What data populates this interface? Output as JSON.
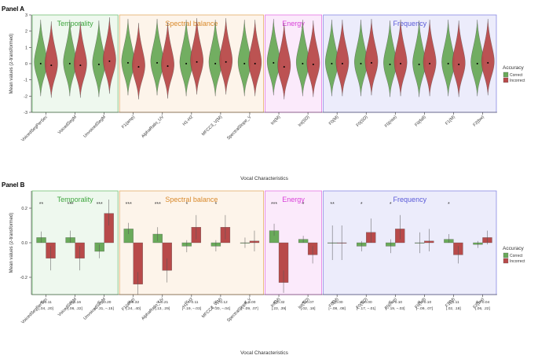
{
  "colors": {
    "correct": "#6aaa5a",
    "incorrect": "#b84a4a",
    "temporality": "#3fa63f",
    "spectral": "#d9892a",
    "energy": "#d83fd8",
    "frequency": "#5a5ad8"
  },
  "chart_data": [
    {
      "panel": "Panel A",
      "type": "violin",
      "ylabel": "Mean values (z-transformed)",
      "xlabel": "Vocal Characteristics",
      "ylim": [
        -3,
        3
      ],
      "yticks": [
        "3",
        "2",
        "1",
        "0",
        "-1",
        "-2",
        "-3"
      ],
      "legend": {
        "title": "Accuracy",
        "entries": [
          "Correct",
          "Incorrect"
        ],
        "placement": "right"
      },
      "groups": [
        {
          "name": "Temporality",
          "vars": [
            "VoicedSegPerSec",
            "VoicedSegM",
            "UnvoicedSegM"
          ]
        },
        {
          "name": "Spectral balance",
          "vars": [
            "F1(amp)",
            "AlphaRatio_UV",
            "H1-H2",
            "MFCC3_V(M)",
            "SpectralSlope_V"
          ]
        },
        {
          "name": "Energy",
          "vars": [
            "Int(M)",
            "Int(SD)"
          ]
        },
        {
          "name": "Frequency",
          "vars": [
            "F0(M)",
            "F0(SD)",
            "F0(rise)",
            "F0(fall)",
            "F1(M)",
            "F2(bw)"
          ]
        }
      ],
      "series": [
        {
          "name": "Correct",
          "means": [
            0.0,
            0.0,
            -0.05,
            0.05,
            0.05,
            0.0,
            0.0,
            0.0,
            0.05,
            0.0,
            0.0,
            0.0,
            -0.05,
            -0.05,
            0.0,
            0.0
          ]
        },
        {
          "name": "Incorrect",
          "means": [
            -0.1,
            -0.1,
            0.15,
            -0.2,
            -0.15,
            0.1,
            0.1,
            0.0,
            -0.2,
            -0.05,
            0.0,
            0.05,
            0.0,
            0.0,
            -0.05,
            0.05
          ]
        }
      ]
    },
    {
      "panel": "Panel B",
      "type": "bar",
      "ylabel": "Mean values (z-transformed)",
      "xlabel": "Vocal Characteristics",
      "ylim": [
        -0.3,
        0.3
      ],
      "yticks": [
        "0.2",
        "0.0",
        "-0.2"
      ],
      "legend": {
        "title": "Accuracy",
        "entries": [
          "Correct",
          "Incorrect"
        ],
        "placement": "right"
      },
      "groups": [
        {
          "name": "Temporality",
          "vars": [
            "VoicedSegPerSec",
            "VoicedSegM",
            "UnvoicedSegM"
          ]
        },
        {
          "name": "Spectral balance",
          "vars": [
            "F1(amp)",
            "AlphaRatio_UV",
            "H1-H2",
            "MFCC3_V(M)",
            "SpectralSlope_V"
          ]
        },
        {
          "name": "Energy",
          "vars": [
            "Int(M)",
            "Int(SD)"
          ]
        },
        {
          "name": "Frequency",
          "vars": [
            "F0(M)",
            "F0(SD)",
            "F0(rise)",
            "F0(fall)",
            "F1(M)",
            "F2(bw)"
          ]
        }
      ],
      "significance": [
        "**",
        "***",
        "***",
        "***",
        "***",
        "*",
        "*",
        "",
        "***",
        "*",
        "**",
        "*",
        "*",
        "",
        "*",
        ""
      ],
      "series": [
        {
          "name": "Correct",
          "values": [
            0.03,
            0.03,
            -0.05,
            0.08,
            0.05,
            -0.02,
            -0.02,
            0.0,
            0.07,
            0.02,
            0.0,
            -0.02,
            -0.02,
            0.0,
            0.02,
            -0.01
          ],
          "ci": [
            [
              0.0,
              0.065
            ],
            [
              0.0,
              0.07
            ],
            [
              -0.09,
              -0.01
            ],
            [
              0.05,
              0.115
            ],
            [
              0.01,
              0.09
            ],
            [
              -0.055,
              0.015
            ],
            [
              -0.05,
              0.015
            ],
            [
              -0.03,
              0.03
            ],
            [
              0.04,
              0.11
            ],
            [
              0.0,
              0.04
            ],
            [
              -0.1,
              0.1
            ],
            [
              -0.05,
              0.01
            ],
            [
              -0.06,
              0.02
            ],
            [
              -0.06,
              0.06
            ],
            [
              0.0,
              0.05
            ],
            [
              -0.03,
              0.01
            ]
          ]
        },
        {
          "name": "Incorrect",
          "values": [
            -0.09,
            -0.09,
            0.17,
            -0.24,
            -0.16,
            0.09,
            0.09,
            0.01,
            -0.23,
            -0.07,
            0.0,
            0.06,
            0.08,
            0.01,
            -0.07,
            0.03
          ],
          "ci": [
            [
              -0.16,
              -0.02
            ],
            [
              -0.16,
              -0.02
            ],
            [
              0.1,
              0.25
            ],
            [
              -0.3,
              -0.17
            ],
            [
              -0.23,
              -0.09
            ],
            [
              0.02,
              0.16
            ],
            [
              0.02,
              0.16
            ],
            [
              -0.05,
              0.07
            ],
            [
              -0.29,
              -0.16
            ],
            [
              -0.12,
              -0.02
            ],
            [
              -0.1,
              0.1
            ],
            [
              0.0,
              0.14
            ],
            [
              0.02,
              0.16
            ],
            [
              -0.05,
              0.08
            ],
            [
              -0.12,
              -0.02
            ],
            [
              -0.01,
              0.07
            ]
          ]
        }
      ],
      "effect_sizes": [
        {
          "d": "d=0.11",
          "ci": "[.04, .20]"
        },
        {
          "d": "d=0.16",
          "ci": "[.06, .22]"
        },
        {
          "d": "d=−0.20",
          "ci": "[−.31, −.15]"
        },
        {
          "d": "d=0.32",
          "ci": "[.24, .40]"
        },
        {
          "d": "d=0.21",
          "ci": "[.13, .29]"
        },
        {
          "d": "d=−0.11",
          "ci": "[−.19, −.03]"
        },
        {
          "d": "d=−0.12",
          "ci": "[−.20, −.04]"
        },
        {
          "d": "d=0.00",
          "ci": "[−.09, .07]"
        },
        {
          "d": "d=0.32",
          "ci": "[.23, .39]"
        },
        {
          "d": "d=0.07",
          "ci": "[.02, .18]"
        },
        {
          "d": "d=0.00",
          "ci": "[−.08, .08]"
        },
        {
          "d": "d=0.00",
          "ci": "[−.17, −.01]"
        },
        {
          "d": "d=−0.10",
          "ci": "[−.19, −.03]"
        },
        {
          "d": "d=−0.10",
          "ci": "[−.09, .07]"
        },
        {
          "d": "d=0.11",
          "ci": "[.02, .18]"
        },
        {
          "d": "d=−0.04",
          "ci": "[.06, .22]"
        }
      ]
    }
  ]
}
